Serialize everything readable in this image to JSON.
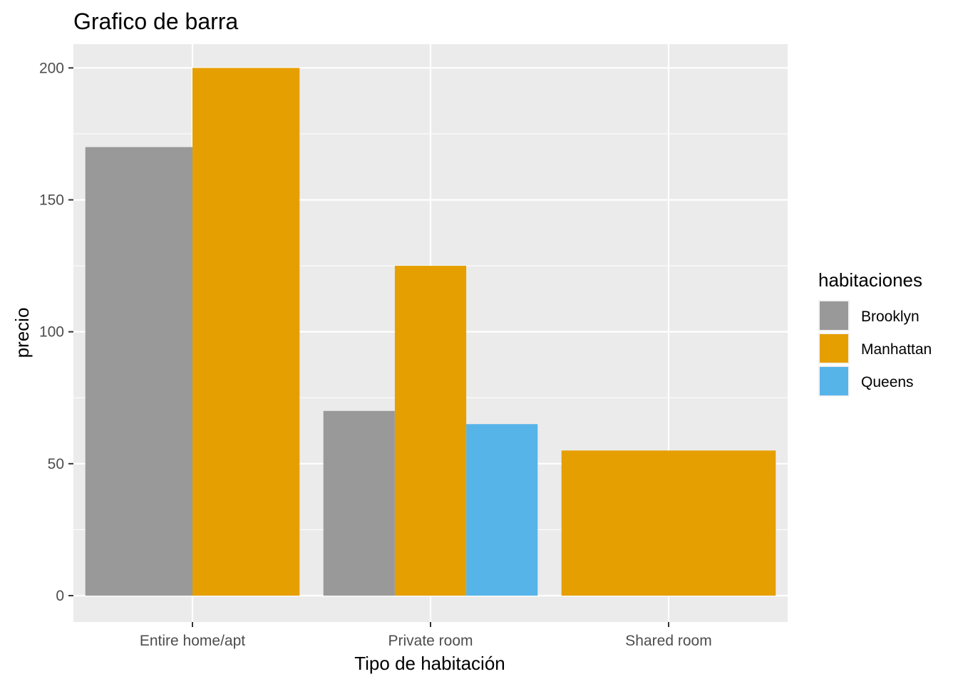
{
  "chart_data": {
    "type": "bar",
    "title": "Grafico de barra",
    "xlabel": "Tipo de habitación",
    "ylabel": "precio",
    "categories": [
      "Entire home/apt",
      "Private room",
      "Shared room"
    ],
    "series": [
      {
        "name": "Brooklyn",
        "color": "#999999",
        "values": [
          170,
          70,
          null
        ]
      },
      {
        "name": "Manhattan",
        "color": "#E69F00",
        "values": [
          200,
          125,
          55
        ]
      },
      {
        "name": "Queens",
        "color": "#56B4E9",
        "values": [
          null,
          65,
          null
        ]
      }
    ],
    "ylim": [
      -10,
      209
    ],
    "yticks": [
      0,
      50,
      100,
      150,
      200
    ],
    "grid": true,
    "legend_title": "habitaciones",
    "legend_position": "right",
    "panel_background": "#EBEBEB",
    "grid_color": "#FFFFFF"
  }
}
